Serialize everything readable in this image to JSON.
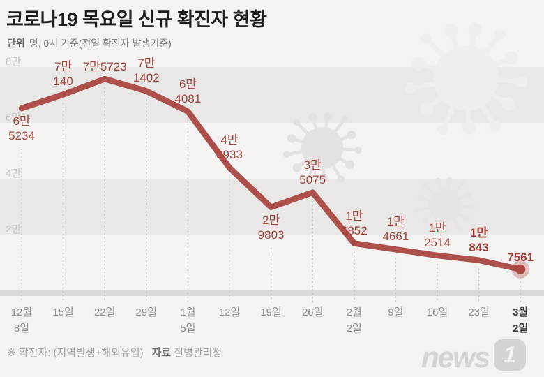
{
  "title": "코로나19 목요일 신규 확진자 현황",
  "subtitle": {
    "unit_label": "단위",
    "text": "명, 0시 기준(전일 확진자 발생기준)"
  },
  "footer": {
    "note": "※ 확진자: (지역발생+해외유입)",
    "source_label": "자료",
    "source_value": "질병관리청"
  },
  "logo": {
    "name": "news1",
    "text": "news",
    "badge": "1"
  },
  "colors": {
    "background": "#f4f3f1",
    "band": "#eae8e6",
    "axis_bar": "#dcdad8",
    "line": "#ad4f4a",
    "point_dot": "#a84640",
    "point_halo": "rgba(173,79,74,0.32)",
    "data_label": "#a5453f",
    "x_axis_text": "#8f8e8c",
    "x_axis_text_strong": "#3c3b39",
    "y_axis_text": "#c6c5c3",
    "grid_dash": "#c2c0be",
    "virus_watermark": "#e6e5e3"
  },
  "chart_data": {
    "type": "line",
    "title": "코로나19 목요일 신규 확진자 현황",
    "unit": "명",
    "x_labels": [
      [
        "12월",
        "8일"
      ],
      [
        "15일"
      ],
      [
        "22일"
      ],
      [
        "29일"
      ],
      [
        "1월",
        "5일"
      ],
      [
        "12일"
      ],
      [
        "19일"
      ],
      [
        "26일"
      ],
      [
        "2월",
        "2일"
      ],
      [
        "9일"
      ],
      [
        "16일"
      ],
      [
        "23일"
      ],
      [
        "3월",
        "2일"
      ]
    ],
    "values": [
      65234,
      70140,
      75723,
      71402,
      64081,
      43933,
      29803,
      35075,
      16852,
      14661,
      12514,
      10843,
      7561
    ],
    "point_labels": [
      [
        "6만",
        "5234"
      ],
      [
        "7만",
        "140"
      ],
      [
        "7만5723"
      ],
      [
        "7만",
        "1402"
      ],
      [
        "6만",
        "4081"
      ],
      [
        "4만",
        "3933"
      ],
      [
        "2만",
        "9803"
      ],
      [
        "3만",
        "5075"
      ],
      [
        "1만",
        "6852"
      ],
      [
        "1만",
        "4661"
      ],
      [
        "1만",
        "2514"
      ],
      [
        "1만",
        "843"
      ],
      [
        "7561"
      ]
    ],
    "label_below": [
      true,
      false,
      false,
      false,
      false,
      false,
      true,
      false,
      false,
      false,
      false,
      false,
      false
    ],
    "label_bold": [
      false,
      false,
      false,
      false,
      false,
      false,
      false,
      false,
      false,
      false,
      false,
      true,
      true
    ],
    "x_label_bold": [
      false,
      false,
      false,
      false,
      false,
      false,
      false,
      false,
      false,
      false,
      false,
      false,
      true
    ],
    "y_ticks": [
      {
        "label": "8만",
        "value": 80000
      },
      {
        "label": "6만",
        "value": 60000
      },
      {
        "label": "4만",
        "value": 40000
      },
      {
        "label": "2만",
        "value": 20000
      }
    ],
    "ylim": [
      0,
      85000
    ],
    "grid": "alternating horizontal bands every 20000; dotted vertical guide under each point",
    "legend": "none",
    "last_point_marker": true
  }
}
